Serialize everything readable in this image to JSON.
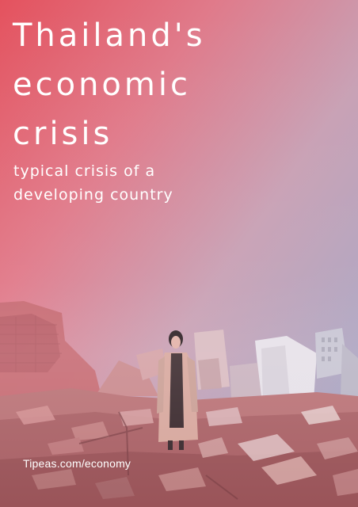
{
  "title": {
    "line1": "Thailand's",
    "line2": "economic",
    "line3": "crisis"
  },
  "subtitle": {
    "line1": "typical crisis of a",
    "line2": "developing country"
  },
  "footer": {
    "url": "Tipeas.com/economy"
  },
  "colors": {
    "gradient_left": "#e4525e",
    "gradient_right": "#9aa6c8",
    "text": "#ffffff"
  }
}
